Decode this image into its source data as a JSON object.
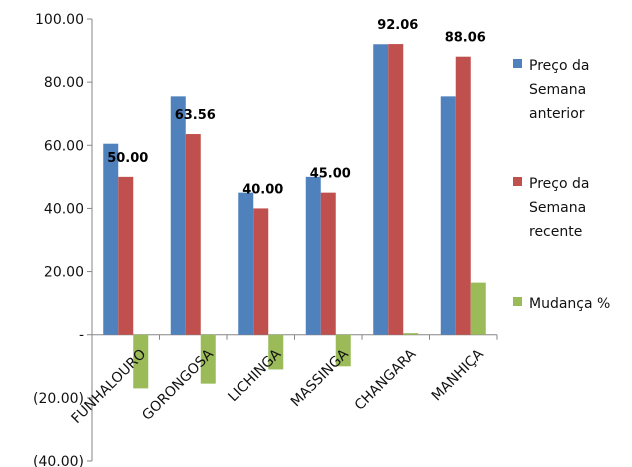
{
  "chart_data": {
    "type": "bar",
    "title": "",
    "xlabel": "",
    "ylabel": "",
    "categories": [
      "FUNHALOURO",
      "GORONGOSA",
      "LICHINGA",
      "MASSINGA",
      "CHANGARA",
      "MANHIÇA"
    ],
    "series": [
      {
        "name": "Preço da Semana anterior",
        "color": "#4F81BD",
        "values": [
          60.5,
          75.5,
          45.0,
          50.0,
          92.0,
          75.5
        ]
      },
      {
        "name": "Preço da Semana recente",
        "color": "#C0504D",
        "values": [
          50.0,
          63.56,
          40.0,
          45.0,
          92.06,
          88.06
        ]
      },
      {
        "name": "Mudança  %",
        "color": "#9BBB59",
        "values": [
          -17.0,
          -15.5,
          -11.0,
          -10.0,
          0.5,
          16.5
        ]
      }
    ],
    "data_labels": [
      "50.00",
      "63.56",
      "40.00",
      "45.00",
      "92.06",
      "88.06"
    ],
    "ylim": [
      -40,
      100
    ],
    "yticks": [
      100,
      80,
      60,
      40,
      20,
      0,
      -20,
      -40
    ],
    "ytick_labels": [
      "100.00",
      "80.00",
      "60.00",
      "40.00",
      "20.00",
      "-",
      "(20.00)",
      "(40.00)"
    ],
    "legend_placement": "right",
    "legend_lines": [
      [
        "Preço da",
        "Semana",
        "anterior"
      ],
      [
        "Preço da",
        "Semana",
        "recente"
      ],
      [
        "Mudança  %"
      ]
    ],
    "grid": false
  }
}
